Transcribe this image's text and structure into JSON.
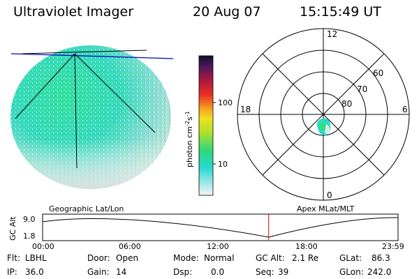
{
  "header": {
    "instrument": "Ultraviolet Imager",
    "date": "20 Aug 07",
    "time": "15:15:49 UT"
  },
  "colorbar": {
    "unit_label": "photon cm",
    "unit_sup1": "-2",
    "unit_mid": "s",
    "unit_sup2": "-1",
    "ticks": [
      "100",
      "10"
    ]
  },
  "polar": {
    "mlt_labels": {
      "top": "12",
      "left": "18",
      "right": "6",
      "bottom": "0"
    },
    "lat_labels": [
      "60",
      "70",
      "80"
    ]
  },
  "orbit": {
    "left_label": "Geographic Lat/Lon",
    "right_label": "Apex MLat/MLT",
    "axis_title": "GC Alt",
    "y_ticks": [
      "9.0",
      "1.8"
    ],
    "x_ticks": [
      "00:00",
      "06:00",
      "12:00",
      "18:00",
      "23:59"
    ],
    "current_time_fraction": 0.636
  },
  "info": {
    "filter_label": "Flt:",
    "filter_value": "LBHL",
    "ip_label": "IP:",
    "ip_value": "36.0",
    "door_label": "Door:",
    "door_value": "Open",
    "gain_label": "Gain:",
    "gain_value": "14",
    "mode_label": "Mode:",
    "mode_value": "Normal",
    "dsp_label": "Dsp:",
    "dsp_value": "0.0",
    "gcalt_label": "GC Alt:",
    "gcalt_value": "2.1 Re",
    "seq_label": "Seq:",
    "seq_value": "39",
    "glat_label": "GLat:",
    "glat_value": "86.3",
    "glon_label": "GLon:",
    "glon_value": "242.0"
  },
  "colors": {
    "orbit_marker": "#dd0000",
    "lon_line": "#0000cc"
  }
}
